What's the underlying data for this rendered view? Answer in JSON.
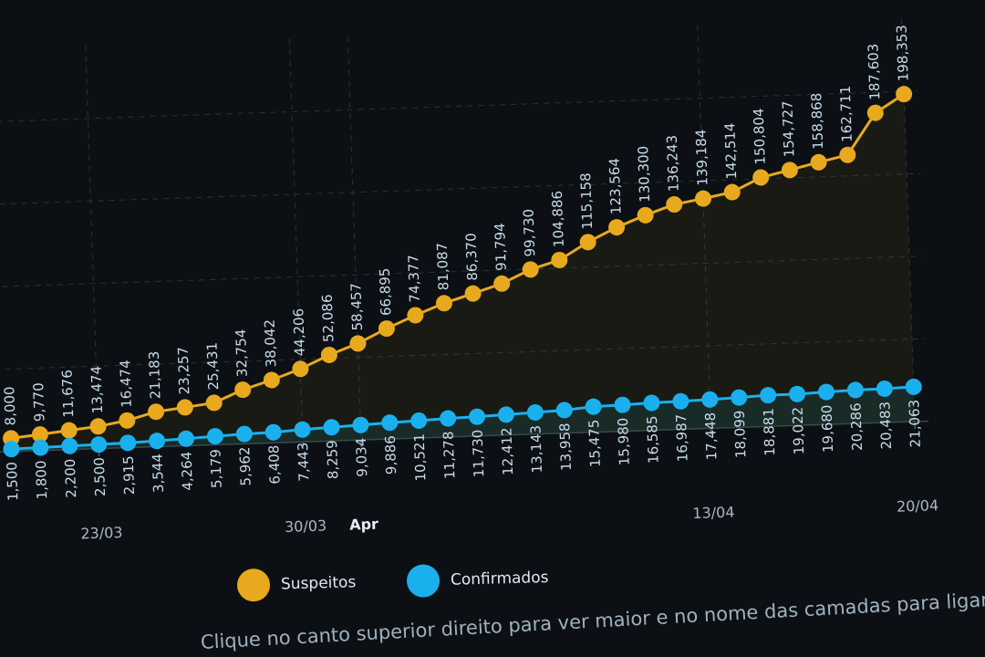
{
  "chart_data": {
    "type": "line",
    "x": [
      "20/03",
      "21/03",
      "22/03",
      "23/03",
      "24/03",
      "25/03",
      "26/03",
      "27/03",
      "28/03",
      "29/03",
      "30/03",
      "31/03",
      "01/04",
      "02/04",
      "03/04",
      "04/04",
      "05/04",
      "06/04",
      "07/04",
      "08/04",
      "09/04",
      "10/04",
      "11/04",
      "12/04",
      "13/04",
      "14/04",
      "15/04",
      "16/04",
      "17/04",
      "18/04",
      "19/04",
      "20/04"
    ],
    "x_ticks": [
      "23/03",
      "30/03",
      "Apr",
      "13/04",
      "20/04"
    ],
    "x_tick_positions": [
      "23/03",
      "30/03",
      "01/04",
      "13/04",
      "20/04"
    ],
    "ylim": [
      0,
      200000
    ],
    "grid": true,
    "legend_position": "bottom",
    "series": [
      {
        "name": "Suspeitos",
        "color": "#e8a91e",
        "values": [
          8000,
          9770,
          11676,
          13474,
          16474,
          21183,
          23257,
          25431,
          32754,
          38042,
          44206,
          52086,
          58457,
          66895,
          74377,
          81087,
          86370,
          91794,
          99730,
          104886,
          115158,
          123564,
          130300,
          136243,
          139184,
          142514,
          150804,
          154727,
          158868,
          162711,
          187603,
          198353
        ]
      },
      {
        "name": "Confirmados",
        "color": "#1ab0ee",
        "values": [
          1500,
          1800,
          2200,
          2500,
          2915,
          3544,
          4264,
          5179,
          5962,
          6408,
          7443,
          8259,
          9034,
          9886,
          10521,
          11278,
          11730,
          12412,
          13143,
          13958,
          15475,
          15980,
          16585,
          16987,
          17448,
          18099,
          18881,
          19022,
          19680,
          20286,
          20483,
          21063
        ]
      }
    ]
  },
  "legend": {
    "suspeitos": "Suspeitos",
    "confirmados": "Confirmados"
  },
  "footer_note": "Clique no canto superior direito para ver maior e no nome das camadas para ligar/desligar"
}
